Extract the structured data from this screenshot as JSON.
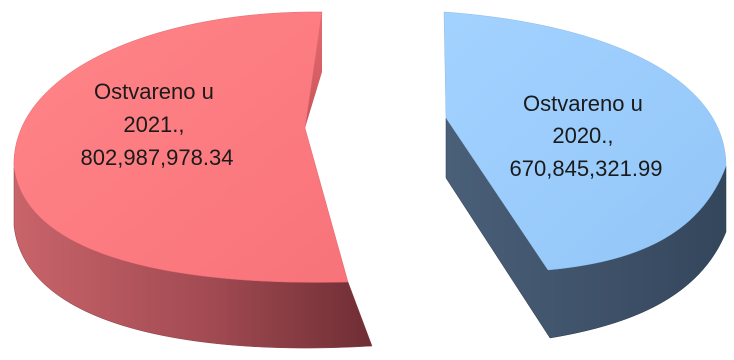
{
  "chart_data": {
    "type": "pie",
    "title": "",
    "style": "3d-exploded",
    "slices": [
      {
        "label_lines": [
          "Ostvareno u",
          "2021.,",
          "802,987,978.34"
        ],
        "category": "Ostvareno u 2021.",
        "value": 802987978.34,
        "color": "#FF7C80"
      },
      {
        "label_lines": [
          "Ostvareno u",
          "2020.,",
          "670,845,321.99"
        ],
        "category": "Ostvareno u 2020.",
        "value": 670845321.99,
        "color": "#99CCFF"
      }
    ]
  }
}
